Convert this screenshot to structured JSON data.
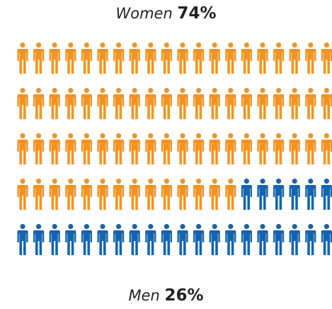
{
  "chart_data": {
    "type": "isotype",
    "series": [
      {
        "name": "Women",
        "percent": "74%",
        "value": 74,
        "color": "#F39323"
      },
      {
        "name": "Men",
        "percent": "26%",
        "value": 26,
        "color": "#1464B0"
      }
    ]
  }
}
